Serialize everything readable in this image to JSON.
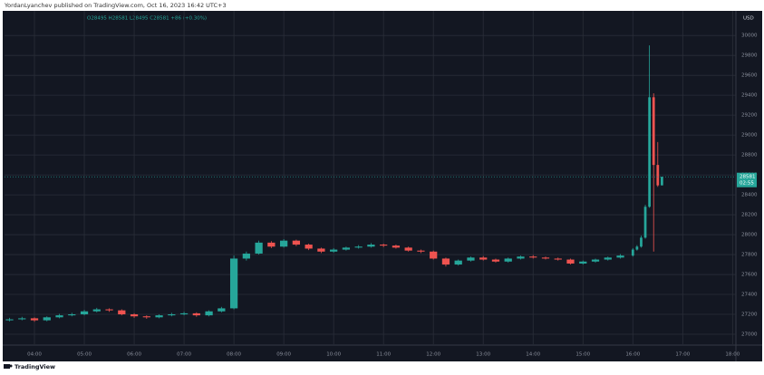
{
  "header": "YordanLyanchev published on TradingView.com, Oct 16, 2023 16:42 UTC+3",
  "footer": "TradingView",
  "chart_data": {
    "type": "candlestick",
    "legend_text": "O28495 H28581 L28495 C28581 +86 (+0.30%)",
    "y_axis_label": "USD",
    "countdown": "02:55",
    "up_color": "#26a69a",
    "down_color": "#ef5350",
    "grid": true,
    "xlim": [
      "03:24",
      "18:04"
    ],
    "xticks": [
      "04:00",
      "05:00",
      "06:00",
      "07:00",
      "08:00",
      "09:00",
      "10:00",
      "11:00",
      "12:00",
      "13:00",
      "14:00",
      "15:00",
      "16:00",
      "17:00",
      "18:00"
    ],
    "ylim": [
      26900,
      30220
    ],
    "yticks": [
      27000,
      27200,
      27400,
      27600,
      27800,
      28000,
      28200,
      28400,
      28600,
      28800,
      29000,
      29200,
      29400,
      29600,
      29800,
      30000
    ],
    "series": [
      {
        "x": [
          "03:30",
          "03:45",
          "04:00",
          "04:15",
          "04:30",
          "04:45",
          "05:00",
          "05:15",
          "05:30",
          "05:45",
          "06:00",
          "06:15",
          "06:30",
          "06:45",
          "07:00",
          "07:15",
          "07:30",
          "07:45",
          "08:00",
          "08:15",
          "08:30",
          "08:45",
          "09:00",
          "09:15",
          "09:30",
          "09:45",
          "10:00",
          "10:15",
          "10:30",
          "10:45",
          "11:00",
          "11:15",
          "11:30",
          "11:45",
          "12:00",
          "12:15",
          "12:30",
          "12:45",
          "13:00",
          "13:15",
          "13:30",
          "13:45",
          "14:00",
          "14:15",
          "14:30",
          "14:45",
          "15:00",
          "15:15",
          "15:30",
          "15:45",
          "16:00",
          "16:05",
          "16:10",
          "16:15",
          "16:20",
          "16:25",
          "16:30",
          "16:35"
        ],
        "open": [
          27140,
          27150,
          27160,
          27140,
          27170,
          27190,
          27200,
          27230,
          27250,
          27240,
          27200,
          27180,
          27170,
          27190,
          27200,
          27210,
          27190,
          27230,
          27260,
          27760,
          27810,
          27920,
          27880,
          27940,
          27900,
          27860,
          27830,
          27850,
          27870,
          27880,
          27900,
          27890,
          27870,
          27840,
          27830,
          27760,
          27700,
          27740,
          27770,
          27750,
          27730,
          27760,
          27780,
          27770,
          27760,
          27750,
          27710,
          27730,
          27750,
          27770,
          27790,
          27850,
          27880,
          27970,
          28280,
          29380,
          28700,
          28495
        ],
        "high": [
          27165,
          27175,
          27170,
          27180,
          27205,
          27215,
          27245,
          27265,
          27260,
          27250,
          27210,
          27190,
          27200,
          27215,
          27225,
          27220,
          27240,
          27275,
          27790,
          27830,
          27940,
          27935,
          27955,
          27950,
          27910,
          27870,
          27865,
          27880,
          27895,
          27915,
          27910,
          27900,
          27880,
          27850,
          27840,
          27770,
          27750,
          27780,
          27785,
          27760,
          27770,
          27790,
          27795,
          27780,
          27770,
          27760,
          27740,
          27760,
          27780,
          27805,
          27865,
          27895,
          27990,
          28300,
          29900,
          29420,
          28930,
          28581
        ],
        "low": [
          27130,
          27140,
          27125,
          27130,
          27160,
          27180,
          27190,
          27220,
          27225,
          27190,
          27165,
          27155,
          27160,
          27180,
          27190,
          27175,
          27180,
          27220,
          27250,
          27740,
          27800,
          27865,
          27870,
          27885,
          27845,
          27815,
          27820,
          27840,
          27860,
          27870,
          27875,
          27860,
          27830,
          27815,
          27750,
          27680,
          27690,
          27730,
          27740,
          27720,
          27720,
          27750,
          27760,
          27750,
          27740,
          27700,
          27700,
          27720,
          27740,
          27760,
          27780,
          27840,
          27870,
          27960,
          28270,
          27830,
          28480,
          28495
        ],
        "close": [
          27150,
          27160,
          27140,
          27170,
          27190,
          27200,
          27230,
          27250,
          27240,
          27200,
          27180,
          27170,
          27190,
          27200,
          27210,
          27190,
          27230,
          27260,
          27760,
          27810,
          27920,
          27880,
          27940,
          27900,
          27860,
          27830,
          27850,
          27870,
          27880,
          27900,
          27890,
          27870,
          27840,
          27830,
          27760,
          27700,
          27740,
          27770,
          27750,
          27730,
          27760,
          27780,
          27770,
          27760,
          27750,
          27710,
          27730,
          27750,
          27770,
          27790,
          27850,
          27880,
          27970,
          28280,
          29380,
          28700,
          28495,
          28581
        ]
      }
    ]
  }
}
